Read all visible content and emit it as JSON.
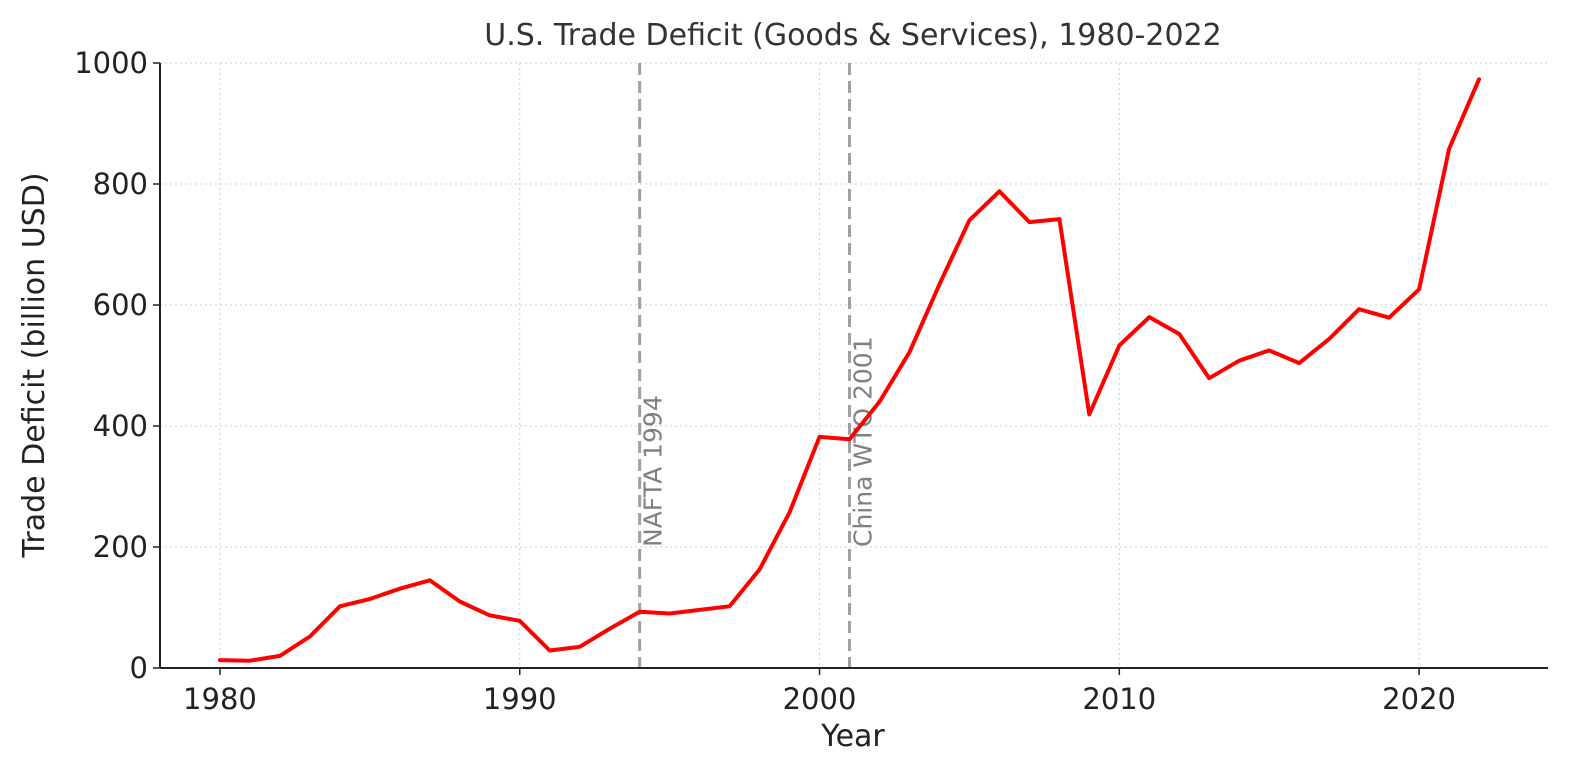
{
  "chart_data": {
    "type": "line",
    "title": "U.S. Trade Deficit (Goods & Services), 1980-2022",
    "xlabel": "Year",
    "ylabel": "Trade Deficit (billion USD)",
    "xlim": [
      1978,
      2024.3
    ],
    "ylim": [
      0,
      1000
    ],
    "xticks": [
      1980,
      1990,
      2000,
      2010,
      2020
    ],
    "yticks": [
      0,
      200,
      400,
      600,
      800,
      1000
    ],
    "grid": true,
    "colors": {
      "line": "#ff0000",
      "vline": "#a0a0a0",
      "annotation": "#808080",
      "grid": "#cccccc",
      "axis": "#222222",
      "text": "#333333"
    },
    "x": [
      1980,
      1981,
      1982,
      1983,
      1984,
      1985,
      1986,
      1987,
      1988,
      1989,
      1990,
      1991,
      1992,
      1993,
      1994,
      1995,
      1996,
      1997,
      1998,
      1999,
      2000,
      2001,
      2002,
      2003,
      2004,
      2005,
      2006,
      2007,
      2008,
      2009,
      2010,
      2011,
      2012,
      2013,
      2014,
      2015,
      2016,
      2017,
      2018,
      2019,
      2020,
      2021,
      2022
    ],
    "series": [
      {
        "values": [
          13,
          12,
          20,
          52,
          102,
          114,
          131,
          145,
          110,
          87,
          78,
          29,
          35,
          65,
          93,
          90,
          96,
          102,
          163,
          257,
          382,
          378,
          440,
          522,
          634,
          740,
          788,
          737,
          742,
          419,
          533,
          580,
          552,
          479,
          508,
          525,
          504,
          544,
          593,
          579,
          626,
          858,
          973
        ]
      }
    ],
    "annotations": [
      {
        "x": 1994,
        "label": "NAFTA 1994"
      },
      {
        "x": 2001,
        "label": "China WTO 2001"
      }
    ]
  }
}
